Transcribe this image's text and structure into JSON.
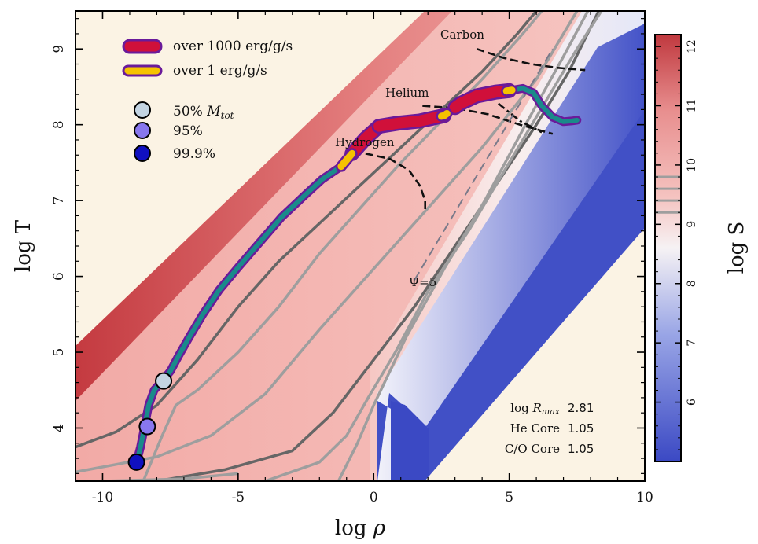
{
  "chart_data": {
    "type": "line",
    "xlabel": "log ρ",
    "ylabel": "log T",
    "xlim": [
      -11,
      10
    ],
    "ylim": [
      3.3,
      9.5
    ],
    "xticks": [
      -10,
      -5,
      0,
      5,
      10
    ],
    "yticks": [
      4,
      5,
      6,
      7,
      8,
      9
    ],
    "xtick_labels": [
      "-10",
      "-5",
      "0",
      "5",
      "10"
    ],
    "ytick_labels": [
      "4",
      "5",
      "6",
      "7",
      "8",
      "9"
    ],
    "colorbar": {
      "label": "log S",
      "range": [
        5,
        12.2
      ],
      "ticks": [
        6,
        7,
        8,
        9,
        10,
        11,
        12
      ],
      "tick_labels": [
        "6",
        "7",
        "8",
        "9",
        "10",
        "11",
        "12"
      ],
      "marked_levels": [
        9.2,
        9.4,
        9.6,
        9.8
      ],
      "colors": {
        "low": "#3b49c4",
        "mid": "#f7f0f0",
        "high": "#c0393f"
      }
    },
    "background_color": "#fbf3e4",
    "profile_track": {
      "color": "#1a8a8a",
      "outline": "#6a1a9a",
      "x": [
        -8.75,
        -8.6,
        -8.45,
        -8.3,
        -8.1,
        -7.8,
        -7.5,
        -7.2,
        -6.8,
        -6.3,
        -5.7,
        -5.0,
        -4.2,
        -3.4,
        -2.6,
        -1.9,
        -1.2,
        -0.8,
        -0.3,
        0.2,
        0.9,
        1.7,
        2.6,
        3.2,
        3.8,
        4.5,
        5.0,
        5.5,
        5.9,
        6.2,
        6.6,
        7.0,
        7.3,
        7.5
      ],
      "y": [
        3.55,
        3.75,
        4.02,
        4.3,
        4.5,
        4.62,
        4.75,
        4.95,
        5.2,
        5.5,
        5.82,
        6.12,
        6.45,
        6.78,
        7.05,
        7.28,
        7.45,
        7.62,
        7.82,
        7.98,
        8.02,
        8.05,
        8.12,
        8.28,
        8.38,
        8.43,
        8.45,
        8.48,
        8.42,
        8.25,
        8.1,
        8.04,
        8.05,
        8.06
      ]
    },
    "burning_regions": [
      {
        "name": "over 1000 erg/g/s",
        "color": "#d0103a",
        "segments": [
          [
            -0.8,
            0.2
          ],
          [
            0.2,
            2.6
          ],
          [
            3.0,
            5.0
          ]
        ]
      },
      {
        "name": "over 1 erg/g/s",
        "color": "#f5c200",
        "segments": [
          [
            -1.2,
            -0.8
          ],
          [
            2.5,
            2.7
          ],
          [
            4.9,
            5.1
          ]
        ]
      }
    ],
    "mass_markers": [
      {
        "label": "50% M_tot",
        "x": -7.75,
        "y": 4.62,
        "color": "#c3d4e2"
      },
      {
        "label": "95%",
        "x": -8.35,
        "y": 4.02,
        "color": "#8877ee"
      },
      {
        "label": "99.9%",
        "x": -8.75,
        "y": 3.55,
        "color": "#1010c0"
      }
    ],
    "burn_lines": [
      {
        "name": "Hydrogen",
        "x": [
          -0.3,
          0.6,
          1.3,
          1.7,
          1.9,
          1.9
        ],
        "y": [
          7.62,
          7.55,
          7.4,
          7.2,
          7.0,
          6.85
        ]
      },
      {
        "name": "Helium",
        "x": [
          1.8,
          3.0,
          4.2,
          5.4,
          6.6
        ],
        "y": [
          8.25,
          8.22,
          8.14,
          8.0,
          7.88
        ]
      },
      {
        "name": "Carbon",
        "x": [
          3.8,
          4.8,
          5.8,
          6.8,
          7.8
        ],
        "y": [
          9.0,
          8.88,
          8.8,
          8.75,
          8.72
        ]
      }
    ],
    "psi_line": {
      "label": "Ψ=5",
      "x": [
        1.5,
        6.6
      ],
      "y": [
        5.95,
        9.0
      ]
    },
    "info_box": [
      {
        "label": "log R_max",
        "value": "2.81"
      },
      {
        "label": "He Core",
        "value": "1.05"
      },
      {
        "label": "C/O Core",
        "value": "1.05"
      }
    ],
    "legend": [
      "over 1000 erg/g/s",
      "over 1 erg/g/s",
      "50% M_tot",
      "95%",
      "99.9%"
    ]
  },
  "legend_text": {
    "burn_high": "over 1000 erg/g/s",
    "burn_low": "over 1 erg/g/s",
    "m50_pre": "50% ",
    "m50_m": "M",
    "m50_sub": "tot",
    "m95": "95%",
    "m999": "99.9%"
  },
  "burn_labels": {
    "hydrogen": "Hydrogen",
    "helium": "Helium",
    "carbon": "Carbon",
    "psi": "Ψ=5"
  },
  "info": {
    "rmax_pre": "log ",
    "rmax_r": "R",
    "rmax_sub": "max",
    "rmax_value": "2.81",
    "he_label": "He Core",
    "he_value": "1.05",
    "co_label": "C/O Core",
    "co_value": "1.05"
  },
  "axes": {
    "xlabel_pre": "log ",
    "xlabel_rho": "ρ",
    "ylabel": "log T",
    "cb_label": "log S"
  }
}
